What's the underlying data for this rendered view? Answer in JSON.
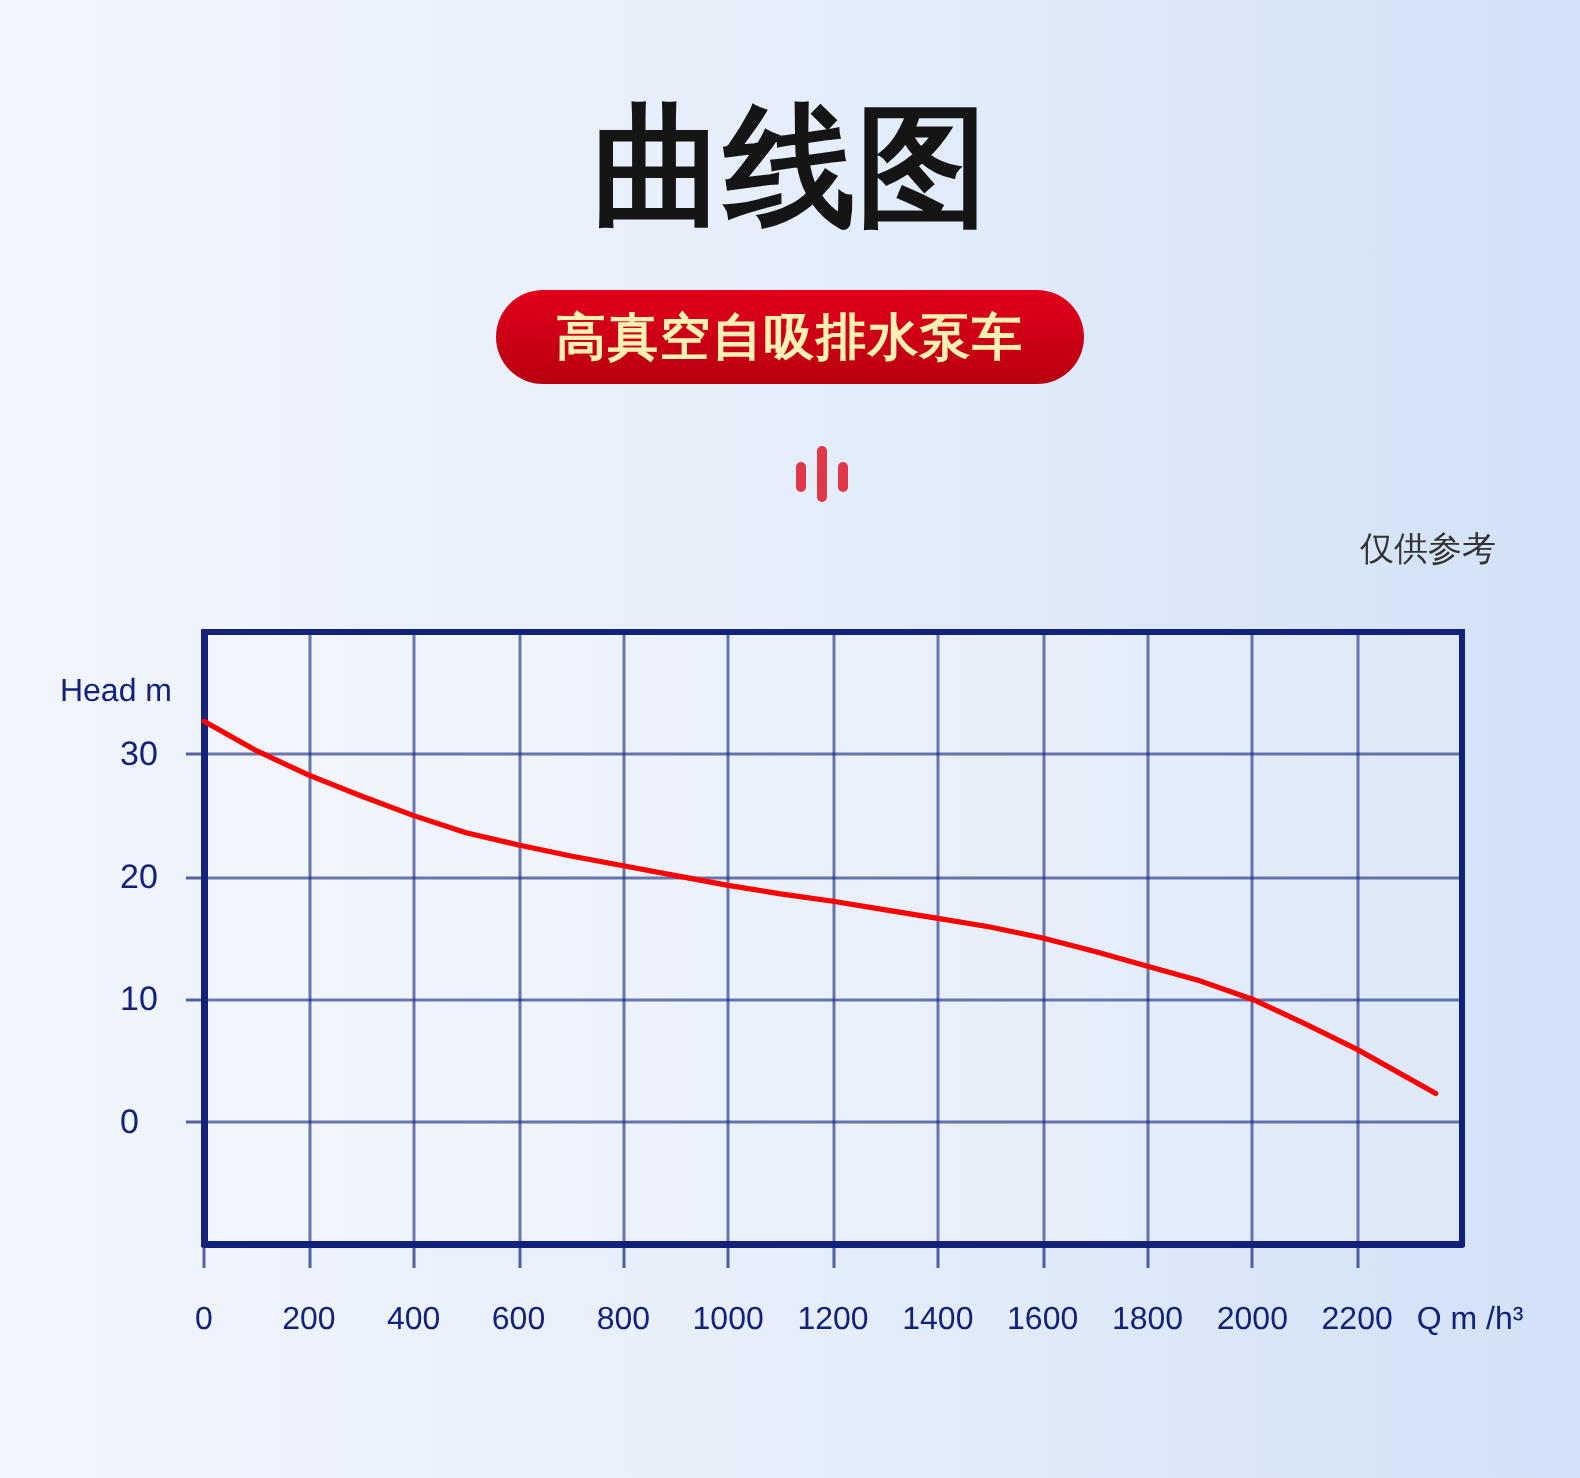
{
  "chart_data": {
    "type": "line",
    "title": "曲线图",
    "subtitle": "高真空自吸排水泵车",
    "annotations": [
      "仅供参考"
    ],
    "xlabel": "Q m /h³",
    "ylabel": "Head m",
    "x": [
      0,
      100,
      200,
      300,
      400,
      500,
      600,
      700,
      800,
      900,
      1000,
      1100,
      1200,
      1300,
      1400,
      1500,
      1600,
      1700,
      1800,
      1900,
      2000,
      2100,
      2200,
      2350
    ],
    "series": [
      {
        "color": "#ff0000",
        "values": [
          32.7,
          30.3,
          28.3,
          26.6,
          25.0,
          23.6,
          22.6,
          21.7,
          20.9,
          20.1,
          19.3,
          18.6,
          18.0,
          17.3,
          16.6,
          15.9,
          15.0,
          13.9,
          12.7,
          11.5,
          10.0,
          8.0,
          5.9,
          2.3
        ]
      }
    ],
    "xlim": [
      0,
      2400
    ],
    "xticks": [
      0,
      200,
      400,
      600,
      800,
      1000,
      1200,
      1400,
      1600,
      1800,
      2000,
      2200
    ],
    "ylim": [
      -10,
      40
    ],
    "yticks": [
      0,
      10,
      20,
      30
    ],
    "grid": true,
    "marker": "none",
    "line_style": "solid"
  }
}
